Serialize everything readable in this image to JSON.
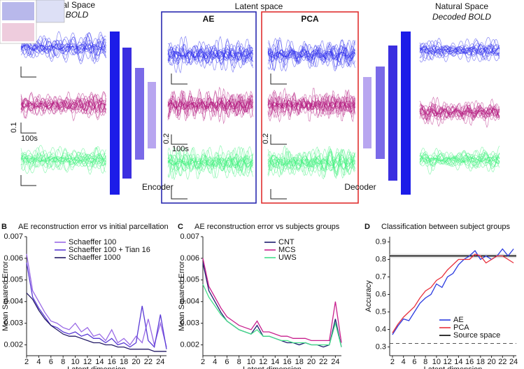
{
  "figure": {
    "left_title": "Natural Space",
    "left_subtitle": "fMRI BOLD",
    "latent_title": "Latent space",
    "ae_title": "AE",
    "pca_title": "PCA",
    "encoder": "Encoder",
    "decoder": "Decoder",
    "right_title": "Natural Space",
    "right_subtitle": "Decoded BOLD",
    "scale_left_y": "0.1",
    "scale_left_x": "100s",
    "scale_ae_y": "0.2",
    "scale_ae_x": "100s",
    "scale_pca_y": "0.2"
  },
  "chart_data": [
    {
      "type": "line",
      "panel_label": "B",
      "title": "AE reconstruction error vs initial parcellation",
      "x_label": "Latent dimension",
      "y_label": "Mean Squared Error",
      "legend": "upper right",
      "x": [
        2,
        3,
        4,
        5,
        6,
        7,
        8,
        9,
        10,
        11,
        12,
        13,
        14,
        15,
        16,
        17,
        18,
        19,
        20,
        21,
        22,
        23,
        24,
        25
      ],
      "xlim": [
        2,
        25
      ],
      "xticks": [
        2,
        4,
        6,
        8,
        10,
        12,
        14,
        16,
        18,
        20,
        22,
        24
      ],
      "ylim": [
        0.0015,
        0.007
      ],
      "yticks": [
        0.002,
        0.003,
        0.004,
        0.005,
        0.006,
        0.007
      ],
      "series": [
        {
          "name": "Schaeffer 100",
          "color": "#9a6ae6",
          "values": [
            0.0062,
            0.0045,
            0.004,
            0.0035,
            0.0031,
            0.003,
            0.0028,
            0.0027,
            0.003,
            0.0026,
            0.0028,
            0.0024,
            0.0025,
            0.0022,
            0.0027,
            0.0021,
            0.0023,
            0.002,
            0.0024,
            0.0021,
            0.0032,
            0.002,
            0.003,
            0.0019
          ]
        },
        {
          "name": "Schaeffer 100 + Tian 16",
          "color": "#5a3ad6",
          "values": [
            0.0058,
            0.0042,
            0.0037,
            0.0033,
            0.0029,
            0.0028,
            0.0026,
            0.0025,
            0.0026,
            0.0024,
            0.0025,
            0.0023,
            0.0023,
            0.0021,
            0.0023,
            0.002,
            0.0021,
            0.0019,
            0.0021,
            0.0038,
            0.0022,
            0.0019,
            0.0034,
            0.0018
          ]
        },
        {
          "name": "Schaeffer 1000",
          "color": "#231a66",
          "values": [
            0.0044,
            0.0041,
            0.0036,
            0.0032,
            0.0029,
            0.0027,
            0.0025,
            0.0024,
            0.0024,
            0.0023,
            0.0022,
            0.0021,
            0.0021,
            0.002,
            0.002,
            0.0019,
            0.0019,
            0.0018,
            0.0018,
            0.0018,
            0.0018,
            0.0017,
            0.0017,
            0.0017
          ]
        }
      ]
    },
    {
      "type": "line",
      "panel_label": "C",
      "title": "AE reconstruction error vs subjects groups",
      "x_label": "Latent dimension",
      "y_label": "Mean Squared Error",
      "legend": "upper right",
      "x": [
        2,
        3,
        4,
        5,
        6,
        7,
        8,
        9,
        10,
        11,
        12,
        13,
        14,
        15,
        16,
        17,
        18,
        19,
        20,
        21,
        22,
        23,
        24,
        25
      ],
      "xlim": [
        2,
        25
      ],
      "xticks": [
        2,
        4,
        6,
        8,
        10,
        12,
        14,
        16,
        18,
        20,
        22,
        24
      ],
      "ylim": [
        0.0015,
        0.007
      ],
      "yticks": [
        0.002,
        0.003,
        0.004,
        0.005,
        0.006,
        0.007
      ],
      "series": [
        {
          "name": "CNT",
          "color": "#1c1c6e",
          "values": [
            0.0058,
            0.0045,
            0.004,
            0.0035,
            0.0031,
            0.0029,
            0.0027,
            0.0026,
            0.0025,
            0.0029,
            0.0024,
            0.0024,
            0.0023,
            0.0022,
            0.0021,
            0.0021,
            0.002,
            0.0021,
            0.002,
            0.002,
            0.0019,
            0.002,
            0.0032,
            0.0019
          ]
        },
        {
          "name": "MCS",
          "color": "#c8208e",
          "values": [
            0.006,
            0.0047,
            0.0042,
            0.0037,
            0.0033,
            0.0031,
            0.0029,
            0.0028,
            0.0027,
            0.0031,
            0.0026,
            0.0026,
            0.0025,
            0.0024,
            0.0024,
            0.0023,
            0.0023,
            0.0023,
            0.0022,
            0.0022,
            0.0022,
            0.0022,
            0.004,
            0.0021
          ]
        },
        {
          "name": "UWS",
          "color": "#44e08a",
          "values": [
            0.0048,
            0.0042,
            0.0038,
            0.0034,
            0.0031,
            0.0029,
            0.0027,
            0.0026,
            0.0025,
            0.0027,
            0.0024,
            0.0024,
            0.0023,
            0.0022,
            0.0022,
            0.0021,
            0.0021,
            0.0021,
            0.002,
            0.002,
            0.002,
            0.002,
            0.003,
            0.0019
          ]
        }
      ]
    },
    {
      "type": "line",
      "panel_label": "D",
      "title": "Classification between subject groups",
      "x_label": "Latent dimension",
      "y_label": "Accuracy",
      "legend": "lower right",
      "x": [
        2,
        3,
        4,
        5,
        6,
        7,
        8,
        9,
        10,
        11,
        12,
        13,
        14,
        15,
        16,
        17,
        18,
        19,
        20,
        21,
        22,
        23,
        24
      ],
      "xlim": [
        1.5,
        24.5
      ],
      "xticks": [
        2,
        4,
        6,
        8,
        10,
        12,
        14,
        16,
        18,
        20,
        22,
        24
      ],
      "ylim": [
        0.25,
        0.93
      ],
      "yticks": [
        0.3,
        0.4,
        0.5,
        0.6,
        0.7,
        0.8,
        0.9
      ],
      "series": [
        {
          "name": "AE",
          "color": "#2a3ae0",
          "values": [
            0.37,
            0.42,
            0.46,
            0.45,
            0.5,
            0.55,
            0.58,
            0.6,
            0.66,
            0.64,
            0.7,
            0.72,
            0.77,
            0.8,
            0.82,
            0.85,
            0.8,
            0.82,
            0.8,
            0.82,
            0.86,
            0.82,
            0.86
          ]
        },
        {
          "name": "PCA",
          "color": "#e8303c",
          "values": [
            0.38,
            0.43,
            0.47,
            0.5,
            0.53,
            0.58,
            0.62,
            0.64,
            0.68,
            0.7,
            0.74,
            0.77,
            0.8,
            0.8,
            0.8,
            0.83,
            0.82,
            0.78,
            0.8,
            0.82,
            0.82,
            0.8,
            0.78
          ]
        }
      ],
      "hlines": [
        {
          "name": "Source space",
          "color": "#000000",
          "value": 0.82
        }
      ],
      "dashed_line": 0.32
    }
  ]
}
